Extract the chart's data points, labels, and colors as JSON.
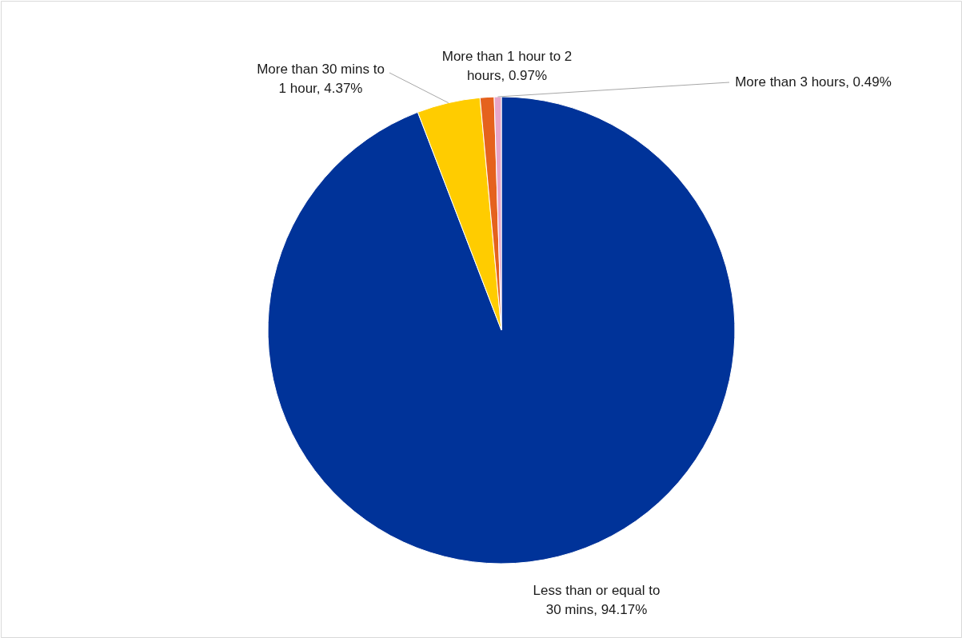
{
  "chart_data": {
    "type": "pie",
    "categories": [
      "Less than or equal to 30 mins",
      "More than 30 mins to 1 hour",
      "More than 1 hour to 2 hours",
      "More than 3 hours"
    ],
    "values": [
      94.17,
      4.37,
      0.97,
      0.49
    ],
    "colors": [
      "#003399",
      "#ffcc00",
      "#e5621d",
      "#e8a6c8"
    ],
    "value_labels": [
      "94.17%",
      "4.37%",
      "0.97%",
      "0.49%"
    ]
  }
}
